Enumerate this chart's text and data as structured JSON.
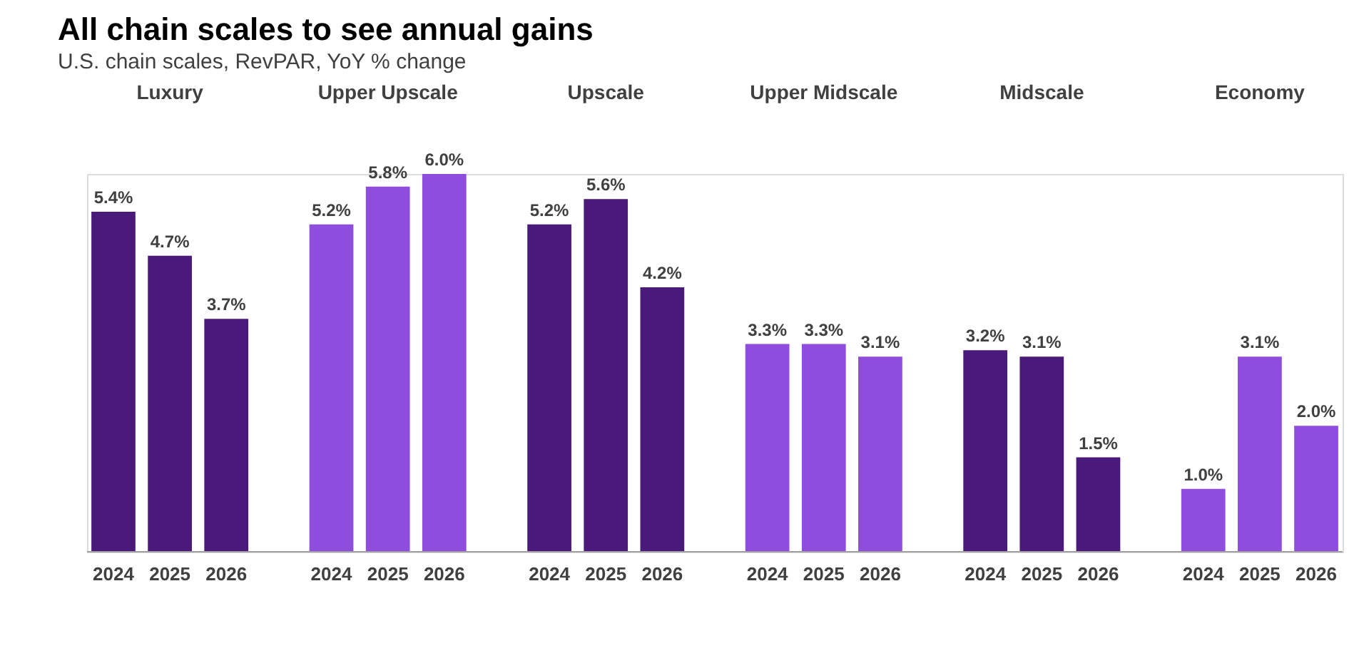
{
  "chart_data": {
    "type": "bar",
    "title": "All chain scales to see annual gains",
    "subtitle": "U.S. chain scales, RevPAR, YoY % change",
    "categories": [
      "Luxury",
      "Upper Upscale",
      "Upscale",
      "Upper Midscale",
      "Midscale",
      "Economy"
    ],
    "series": [
      {
        "name": "2024",
        "colors": [
          "#4a1a7b",
          "#8e4ddc",
          "#4a1a7b",
          "#8e4ddc",
          "#4a1a7b",
          "#8e4ddc"
        ],
        "values": [
          5.4,
          5.2,
          5.2,
          3.3,
          3.2,
          1.0
        ],
        "value_labels": [
          "5.4%",
          "5.2%",
          "5.2%",
          "3.3%",
          "3.2%",
          "1.0%"
        ]
      },
      {
        "name": "2025",
        "colors": [
          "#4a1a7b",
          "#8e4ddc",
          "#4a1a7b",
          "#8e4ddc",
          "#4a1a7b",
          "#8e4ddc"
        ],
        "values": [
          4.7,
          5.8,
          5.6,
          3.3,
          3.1,
          3.1
        ],
        "value_labels": [
          "4.7%",
          "5.8%",
          "5.6%",
          "3.3%",
          "3.1%",
          "3.1%"
        ]
      },
      {
        "name": "2026",
        "colors": [
          "#4a1a7b",
          "#8e4ddc",
          "#4a1a7b",
          "#8e4ddc",
          "#4a1a7b",
          "#8e4ddc"
        ],
        "values": [
          3.7,
          6.0,
          4.2,
          3.1,
          1.5,
          2.0
        ],
        "value_labels": [
          "3.7%",
          "6.0%",
          "4.2%",
          "3.1%",
          "1.5%",
          "2.0%"
        ]
      }
    ]
  }
}
